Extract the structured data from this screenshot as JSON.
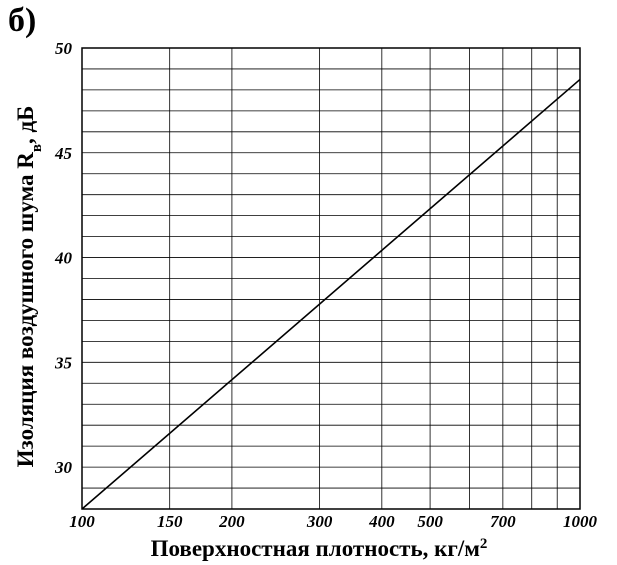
{
  "panel_label": "б)",
  "chart_data": {
    "type": "line",
    "title": "",
    "xlabel": "Поверхностная плотность, кг/м",
    "xlabel_sup": "2",
    "ylabel": "Изоляция воздушного шума R",
    "ylabel_sub": "в",
    "ylabel_suffix": ", дБ",
    "x_scale": "log",
    "xlim": [
      100,
      1000
    ],
    "ylim": [
      28,
      50
    ],
    "x_ticks": [
      100,
      150,
      200,
      300,
      400,
      500,
      700,
      1000
    ],
    "x_gridlines": [
      100,
      150,
      200,
      300,
      400,
      500,
      600,
      700,
      800,
      900,
      1000
    ],
    "y_ticks": [
      30,
      35,
      40,
      45,
      50
    ],
    "y_grid_step": 1,
    "grid": true,
    "series": [
      {
        "x": [
          100,
          1000
        ],
        "y": [
          28,
          48.5
        ],
        "color": "#000000"
      }
    ]
  }
}
